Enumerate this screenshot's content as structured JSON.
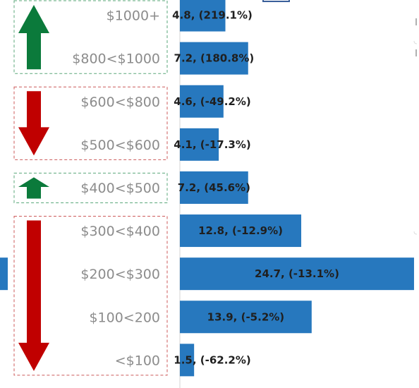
{
  "colors": {
    "bar": "#2778be",
    "up_arrow": "#0b7a3b",
    "down_arrow": "#c00000",
    "up_box": "#5aa77a",
    "down_box": "#cc5a5a",
    "category_text": "#8c8c8c",
    "label_text": "#1f1f1f"
  },
  "chart_data": {
    "type": "bar",
    "orientation": "horizontal",
    "categories": [
      "$1000+",
      "$800<$1000",
      "$600<$800",
      "$500<$600",
      "$400<$500",
      "$300<$400",
      "$200<$300",
      "$100<200",
      "<$100"
    ],
    "values": [
      4.8,
      7.2,
      4.6,
      4.1,
      7.2,
      12.8,
      24.7,
      13.9,
      1.5
    ],
    "change_pct": [
      219.1,
      180.8,
      -49.2,
      -17.3,
      45.6,
      -12.9,
      -13.1,
      -5.2,
      -62.2
    ],
    "data_labels": [
      "4.8, (219.1%)",
      "7.2, (180.8%)",
      "4.6, (-49.2%)",
      "4.1, (-17.3%)",
      "7.2, (45.6%)",
      "12.8, (-12.9%)",
      "24.7, (-13.1%)",
      "13.9, (-5.2%)",
      "1.5, (-62.2%)"
    ],
    "title": "",
    "xlabel": "",
    "ylabel": "",
    "xlim": [
      0,
      25
    ],
    "legend": "none",
    "grid": false,
    "groups": [
      {
        "direction": "up",
        "categories": [
          "$1000+",
          "$800<$1000"
        ]
      },
      {
        "direction": "down",
        "categories": [
          "$600<$800",
          "$500<$600"
        ]
      },
      {
        "direction": "up",
        "categories": [
          "$400<$500"
        ]
      },
      {
        "direction": "down",
        "categories": [
          "$300<$400",
          "$200<$300",
          "$100<200",
          "<$100"
        ]
      }
    ]
  }
}
